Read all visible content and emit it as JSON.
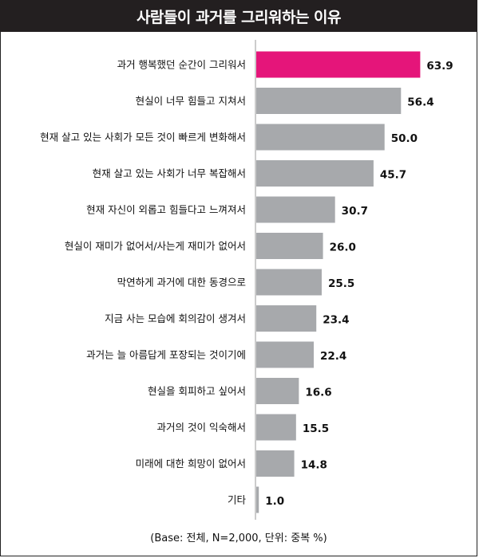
{
  "chart_data": {
    "type": "bar",
    "orientation": "horizontal",
    "title": "사람들이 과거를 그리워하는 이유",
    "categories": [
      "과거 행복했던 순간이 그리워서",
      "현실이 너무 힘들고 지쳐서",
      "현재 살고 있는 사회가 모든 것이 빠르게 변화해서",
      "현재 살고 있는 사회가 너무 복잡해서",
      "현재 자신이 외롭고 힘들다고 느껴져서",
      "현실이 재미가 없어서/사는게 재미가 없어서",
      "막연하게 과거에 대한 동경으로",
      "지금 사는 모습에 회의감이 생겨서",
      "과거는 늘 아름답게 포장되는 것이기에",
      "현실을 회피하고 싶어서",
      "과거의 것이 익숙해서",
      "미래에 대한 희망이 없어서",
      "기타"
    ],
    "values": [
      63.9,
      56.4,
      50.0,
      45.7,
      30.7,
      26.0,
      25.5,
      23.4,
      22.4,
      16.6,
      15.5,
      14.8,
      1.0
    ],
    "value_labels": [
      "63.9",
      "56.4",
      "50.0",
      "45.7",
      "30.7",
      "26.0",
      "25.5",
      "23.4",
      "22.4",
      "16.6",
      "15.5",
      "14.8",
      "1.0"
    ],
    "xlim": [
      0,
      70
    ],
    "highlight_index": 0,
    "colors": {
      "highlight": "#e5157a",
      "bar": "#a7a9ac",
      "axis": "#9a9a9a"
    },
    "grid": false,
    "note": "(Base: 전체, N=2,000, 단위: 중복 %)"
  }
}
